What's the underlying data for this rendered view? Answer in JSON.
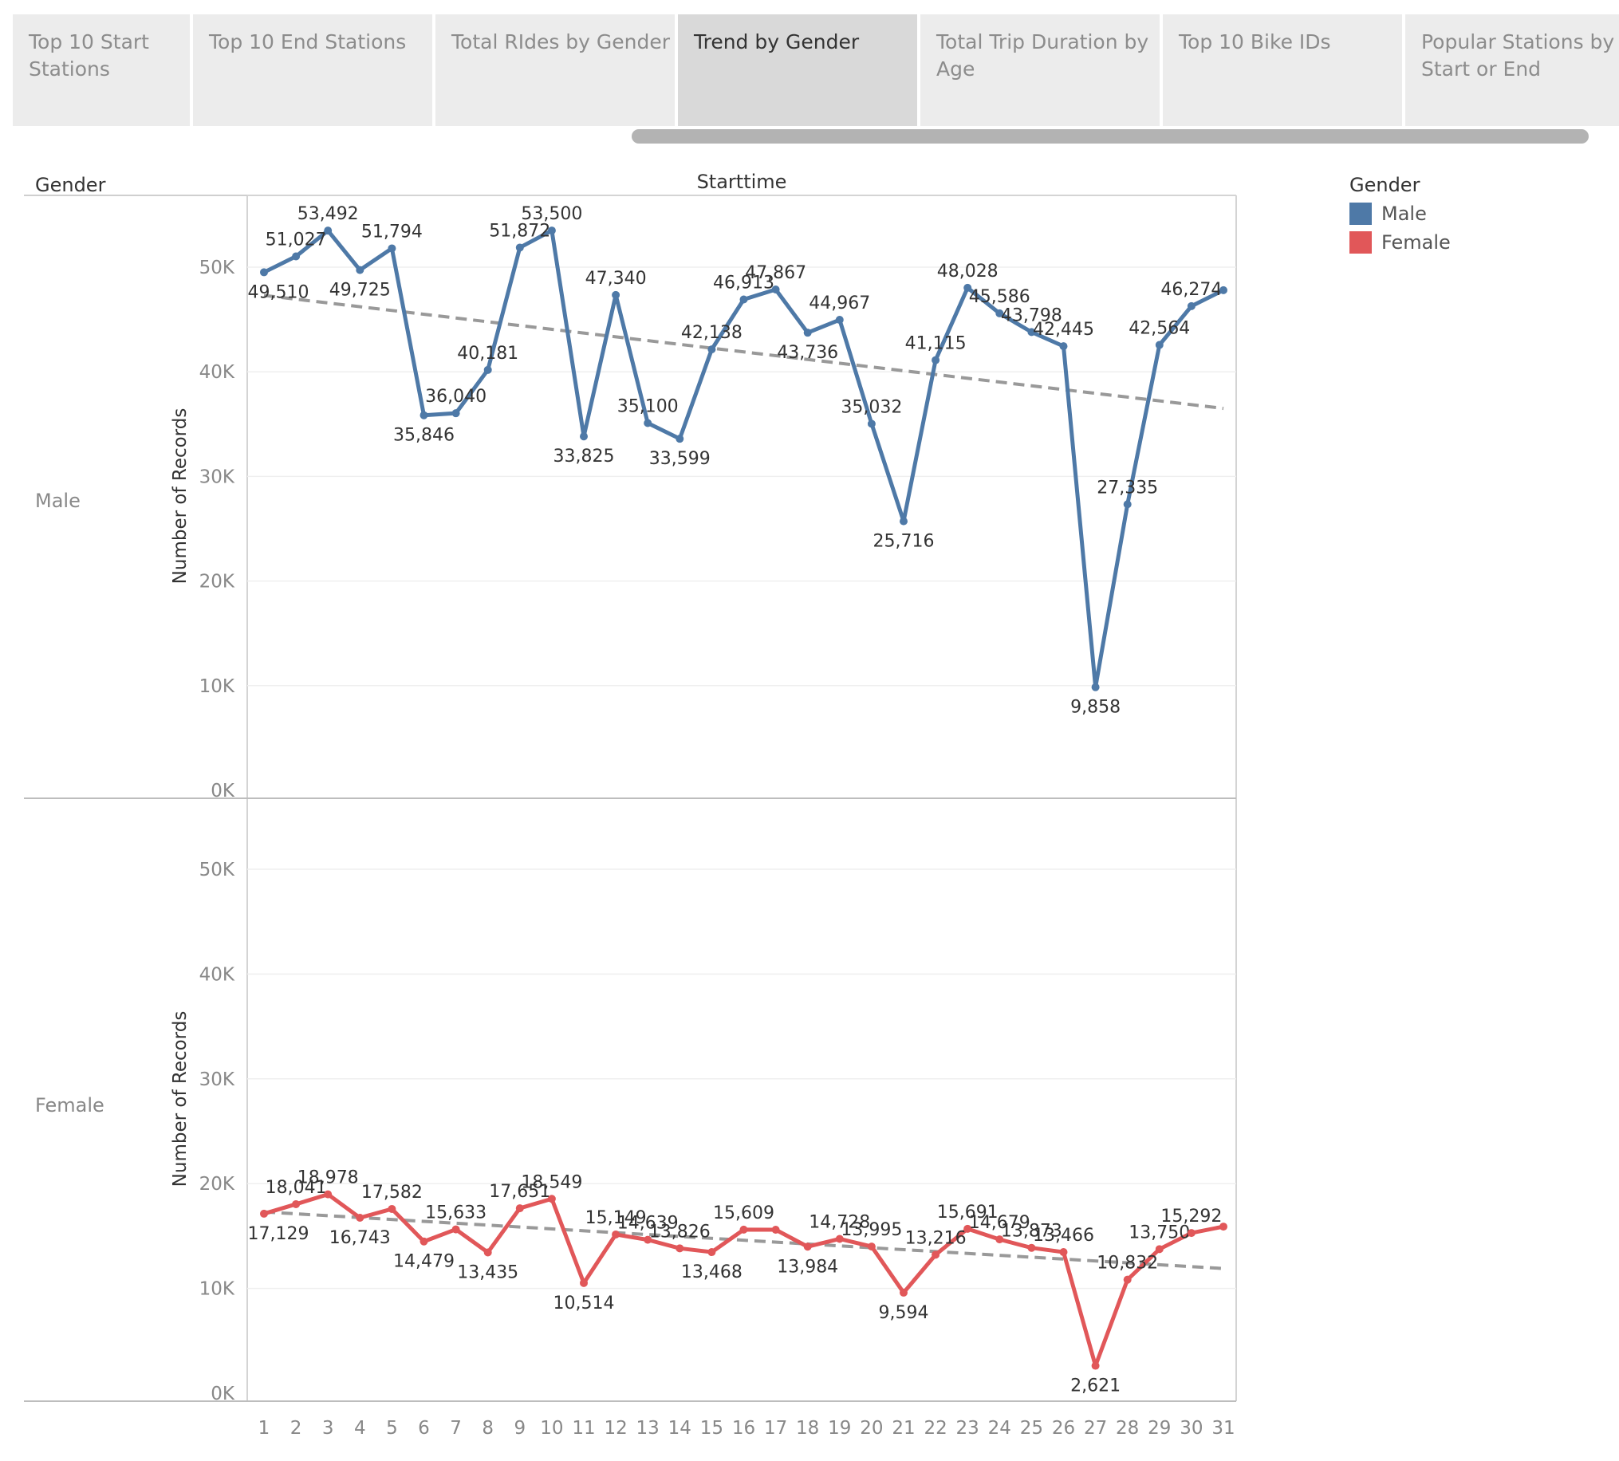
{
  "tabs": [
    {
      "label": "Top 10 Start Stations",
      "lines": [
        "Top 10 Start",
        "Stations"
      ],
      "active": false
    },
    {
      "label": "Top 10 End Stations",
      "lines": [
        "Top 10 End Stations"
      ],
      "active": false
    },
    {
      "label": "Total RIdes by Gender",
      "lines": [
        "Total RIdes by Gender"
      ],
      "active": false
    },
    {
      "label": "Trend by Gender",
      "lines": [
        "Trend by Gender"
      ],
      "active": true
    },
    {
      "label": "Total Trip Duration by Age",
      "lines": [
        "Total Trip Duration by",
        "Age"
      ],
      "active": false
    },
    {
      "label": "Top 10 Bike IDs",
      "lines": [
        "Top 10 Bike IDs"
      ],
      "active": false
    },
    {
      "label": "Popular Stations by Start or End",
      "lines": [
        "Popular Stations by",
        "Start or End"
      ],
      "active": false
    }
  ],
  "legend": {
    "title": "Gender",
    "items": [
      {
        "label": "Male",
        "color": "#4e79a7"
      },
      {
        "label": "Female",
        "color": "#e15759"
      }
    ]
  },
  "chart_data": {
    "type": "line",
    "title": "",
    "column_header": "Starttime",
    "row_header": "Gender",
    "xlabel": "",
    "ylabel": "Number of Records",
    "x": [
      1,
      2,
      3,
      4,
      5,
      6,
      7,
      8,
      9,
      10,
      11,
      12,
      13,
      14,
      15,
      16,
      17,
      18,
      19,
      20,
      21,
      22,
      23,
      24,
      25,
      26,
      27,
      28,
      29,
      30,
      31
    ],
    "ylim": [
      0,
      55000
    ],
    "yticks": [
      0,
      10000,
      20000,
      30000,
      40000,
      50000
    ],
    "ytick_labels": [
      "0K",
      "10K",
      "20K",
      "30K",
      "40K",
      "50K"
    ],
    "trend_color": "#999999",
    "series": [
      {
        "name": "Male",
        "color": "#4e79a7",
        "values": [
          49510,
          51027,
          53492,
          49725,
          51794,
          35846,
          36040,
          40181,
          51872,
          53500,
          33825,
          47340,
          35100,
          33599,
          42138,
          46913,
          47867,
          43736,
          44967,
          35032,
          25716,
          41115,
          48028,
          45586,
          43798,
          42445,
          9858,
          27335,
          42564,
          46274,
          47800
        ],
        "data_labels": [
          "49,510",
          "51,027",
          "53,492",
          "49,725",
          "51,794",
          "35,846",
          "36,040",
          "40,181",
          "51,872",
          "53,500",
          "33,825",
          "47,340",
          "35,100",
          "33,599",
          "42,138",
          "46,913",
          "47,867",
          "43,736",
          "44,967",
          "35,032",
          "25,716",
          "41,115",
          "48,028",
          "45,586",
          "43,798",
          "42,445",
          "9,858",
          "27,335",
          "42,564",
          "46,274",
          ""
        ],
        "trend": [
          47300,
          36500
        ]
      },
      {
        "name": "Female",
        "color": "#e15759",
        "values": [
          17129,
          18041,
          18978,
          16743,
          17582,
          14479,
          15633,
          13435,
          17651,
          18549,
          10514,
          15149,
          14639,
          13826,
          13468,
          15609,
          15600,
          13984,
          14728,
          13995,
          9594,
          13216,
          15691,
          14679,
          13873,
          13466,
          2621,
          10832,
          13750,
          15292,
          15900
        ],
        "data_labels": [
          "17,129",
          "18,041",
          "18,978",
          "16,743",
          "17,582",
          "14,479",
          "15,633",
          "13,435",
          "17,651",
          "18,549",
          "10,514",
          "15,149",
          "14,639",
          "13,826",
          "13,468",
          "15,609",
          "",
          "13,984",
          "14,728",
          "13,995",
          "9,594",
          "13,216",
          "15,691",
          "14,679",
          "13,873",
          "13,466",
          "2,621",
          "10,832",
          "13,750",
          "15,292",
          ""
        ],
        "trend": [
          17300,
          11900
        ]
      }
    ]
  }
}
